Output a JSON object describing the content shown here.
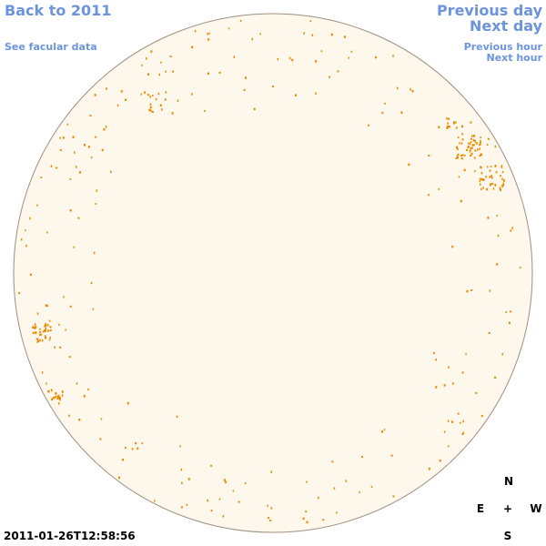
{
  "nav": {
    "back": "Back to 2011",
    "facular_data": "See facular data",
    "previous_day": "Previous day",
    "next_day": "Next day",
    "previous_hour": "Previous hour",
    "next_hour": "Next hour"
  },
  "timestamp": "2011-01-26T12:58:56",
  "compass": {
    "north": "N",
    "east": "E",
    "center": "+",
    "west": "W",
    "south": "S"
  }
}
